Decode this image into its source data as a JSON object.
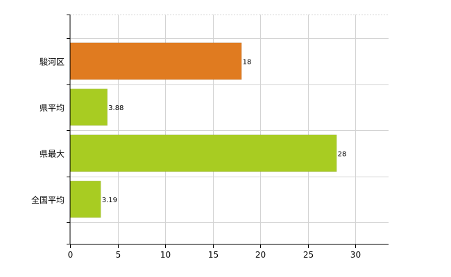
{
  "chart_data": {
    "type": "bar",
    "orientation": "horizontal",
    "categories": [
      "駿河区",
      "県平均",
      "県最大",
      "全国平均"
    ],
    "values": [
      18,
      3.88,
      28,
      3.19
    ],
    "data_labels": [
      "18",
      "3.88",
      "28",
      "3.19"
    ],
    "bar_colors": [
      "#E07B20",
      "#A8CC22",
      "#A8CC22",
      "#A8CC22"
    ],
    "title": "",
    "xlabel": "",
    "ylabel": "",
    "xlim": [
      0,
      33.5
    ],
    "xticks": [
      0,
      5,
      10,
      15,
      20,
      25,
      30
    ],
    "grid": true,
    "legend": "none"
  }
}
